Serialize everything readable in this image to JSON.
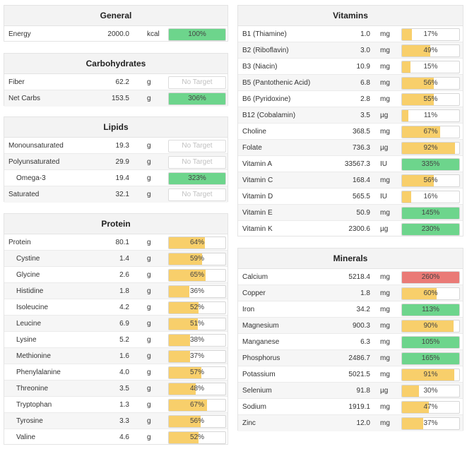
{
  "general": {
    "title": "General",
    "rows": [
      {
        "name": "Energy",
        "value": "2000.0",
        "unit": "kcal",
        "pct": "100%",
        "fill": 1.0,
        "color": "green"
      }
    ]
  },
  "carbohydrates": {
    "title": "Carbohydrates",
    "rows": [
      {
        "name": "Fiber",
        "value": "62.2",
        "unit": "g",
        "pct": "No Target",
        "fill": 0,
        "color": "none"
      },
      {
        "name": "Net Carbs",
        "value": "153.5",
        "unit": "g",
        "pct": "306%",
        "fill": 1.0,
        "color": "green"
      }
    ]
  },
  "lipids": {
    "title": "Lipids",
    "rows": [
      {
        "name": "Monounsaturated",
        "value": "19.3",
        "unit": "g",
        "pct": "No Target",
        "fill": 0,
        "color": "none"
      },
      {
        "name": "Polyunsaturated",
        "value": "29.9",
        "unit": "g",
        "pct": "No Target",
        "fill": 0,
        "color": "none"
      },
      {
        "name": "Omega-3",
        "value": "19.4",
        "unit": "g",
        "pct": "323%",
        "fill": 1.0,
        "color": "green",
        "indent": true
      },
      {
        "name": "Saturated",
        "value": "32.1",
        "unit": "g",
        "pct": "No Target",
        "fill": 0,
        "color": "none"
      }
    ]
  },
  "protein": {
    "title": "Protein",
    "rows": [
      {
        "name": "Protein",
        "value": "80.1",
        "unit": "g",
        "pct": "64%",
        "fill": 0.64,
        "color": "yellow"
      },
      {
        "name": "Cystine",
        "value": "1.4",
        "unit": "g",
        "pct": "59%",
        "fill": 0.59,
        "color": "yellow",
        "indent": true
      },
      {
        "name": "Glycine",
        "value": "2.6",
        "unit": "g",
        "pct": "65%",
        "fill": 0.65,
        "color": "yellow",
        "indent": true
      },
      {
        "name": "Histidine",
        "value": "1.8",
        "unit": "g",
        "pct": "36%",
        "fill": 0.36,
        "color": "yellow",
        "indent": true
      },
      {
        "name": "Isoleucine",
        "value": "4.2",
        "unit": "g",
        "pct": "52%",
        "fill": 0.52,
        "color": "yellow",
        "indent": true
      },
      {
        "name": "Leucine",
        "value": "6.9",
        "unit": "g",
        "pct": "51%",
        "fill": 0.51,
        "color": "yellow",
        "indent": true
      },
      {
        "name": "Lysine",
        "value": "5.2",
        "unit": "g",
        "pct": "38%",
        "fill": 0.38,
        "color": "yellow",
        "indent": true
      },
      {
        "name": "Methionine",
        "value": "1.6",
        "unit": "g",
        "pct": "37%",
        "fill": 0.37,
        "color": "yellow",
        "indent": true
      },
      {
        "name": "Phenylalanine",
        "value": "4.0",
        "unit": "g",
        "pct": "57%",
        "fill": 0.57,
        "color": "yellow",
        "indent": true
      },
      {
        "name": "Threonine",
        "value": "3.5",
        "unit": "g",
        "pct": "48%",
        "fill": 0.48,
        "color": "yellow",
        "indent": true
      },
      {
        "name": "Tryptophan",
        "value": "1.3",
        "unit": "g",
        "pct": "67%",
        "fill": 0.67,
        "color": "yellow",
        "indent": true
      },
      {
        "name": "Tyrosine",
        "value": "3.3",
        "unit": "g",
        "pct": "56%",
        "fill": 0.56,
        "color": "yellow",
        "indent": true
      },
      {
        "name": "Valine",
        "value": "4.6",
        "unit": "g",
        "pct": "52%",
        "fill": 0.52,
        "color": "yellow",
        "indent": true
      }
    ]
  },
  "vitamins": {
    "title": "Vitamins",
    "rows": [
      {
        "name": "B1 (Thiamine)",
        "value": "1.0",
        "unit": "mg",
        "pct": "17%",
        "fill": 0.17,
        "color": "yellow"
      },
      {
        "name": "B2 (Riboflavin)",
        "value": "3.0",
        "unit": "mg",
        "pct": "49%",
        "fill": 0.49,
        "color": "yellow"
      },
      {
        "name": "B3 (Niacin)",
        "value": "10.9",
        "unit": "mg",
        "pct": "15%",
        "fill": 0.15,
        "color": "yellow"
      },
      {
        "name": "B5 (Pantothenic Acid)",
        "value": "6.8",
        "unit": "mg",
        "pct": "56%",
        "fill": 0.56,
        "color": "yellow"
      },
      {
        "name": "B6 (Pyridoxine)",
        "value": "2.8",
        "unit": "mg",
        "pct": "55%",
        "fill": 0.55,
        "color": "yellow"
      },
      {
        "name": "B12 (Cobalamin)",
        "value": "3.5",
        "unit": "µg",
        "pct": "11%",
        "fill": 0.11,
        "color": "yellow"
      },
      {
        "name": "Choline",
        "value": "368.5",
        "unit": "mg",
        "pct": "67%",
        "fill": 0.67,
        "color": "yellow"
      },
      {
        "name": "Folate",
        "value": "736.3",
        "unit": "µg",
        "pct": "92%",
        "fill": 0.92,
        "color": "yellow"
      },
      {
        "name": "Vitamin A",
        "value": "33567.3",
        "unit": "IU",
        "pct": "335%",
        "fill": 1.0,
        "color": "green"
      },
      {
        "name": "Vitamin C",
        "value": "168.4",
        "unit": "mg",
        "pct": "56%",
        "fill": 0.56,
        "color": "yellow"
      },
      {
        "name": "Vitamin D",
        "value": "565.5",
        "unit": "IU",
        "pct": "16%",
        "fill": 0.16,
        "color": "yellow"
      },
      {
        "name": "Vitamin E",
        "value": "50.9",
        "unit": "mg",
        "pct": "145%",
        "fill": 1.0,
        "color": "green"
      },
      {
        "name": "Vitamin K",
        "value": "2300.6",
        "unit": "µg",
        "pct": "230%",
        "fill": 1.0,
        "color": "green"
      }
    ]
  },
  "minerals": {
    "title": "Minerals",
    "rows": [
      {
        "name": "Calcium",
        "value": "5218.4",
        "unit": "mg",
        "pct": "260%",
        "fill": 1.0,
        "color": "red"
      },
      {
        "name": "Copper",
        "value": "1.8",
        "unit": "mg",
        "pct": "60%",
        "fill": 0.6,
        "color": "yellow"
      },
      {
        "name": "Iron",
        "value": "34.2",
        "unit": "mg",
        "pct": "113%",
        "fill": 1.0,
        "color": "green"
      },
      {
        "name": "Magnesium",
        "value": "900.3",
        "unit": "mg",
        "pct": "90%",
        "fill": 0.9,
        "color": "yellow"
      },
      {
        "name": "Manganese",
        "value": "6.3",
        "unit": "mg",
        "pct": "105%",
        "fill": 1.0,
        "color": "green"
      },
      {
        "name": "Phosphorus",
        "value": "2486.7",
        "unit": "mg",
        "pct": "165%",
        "fill": 1.0,
        "color": "green"
      },
      {
        "name": "Potassium",
        "value": "5021.5",
        "unit": "mg",
        "pct": "91%",
        "fill": 0.91,
        "color": "yellow"
      },
      {
        "name": "Selenium",
        "value": "91.8",
        "unit": "µg",
        "pct": "30%",
        "fill": 0.3,
        "color": "yellow"
      },
      {
        "name": "Sodium",
        "value": "1919.1",
        "unit": "mg",
        "pct": "47%",
        "fill": 0.47,
        "color": "yellow"
      },
      {
        "name": "Zinc",
        "value": "12.0",
        "unit": "mg",
        "pct": "37%",
        "fill": 0.37,
        "color": "yellow"
      }
    ]
  },
  "colors": {
    "green": "#6dd58c",
    "yellow": "#f8cf6b",
    "red": "#ea7a76"
  }
}
